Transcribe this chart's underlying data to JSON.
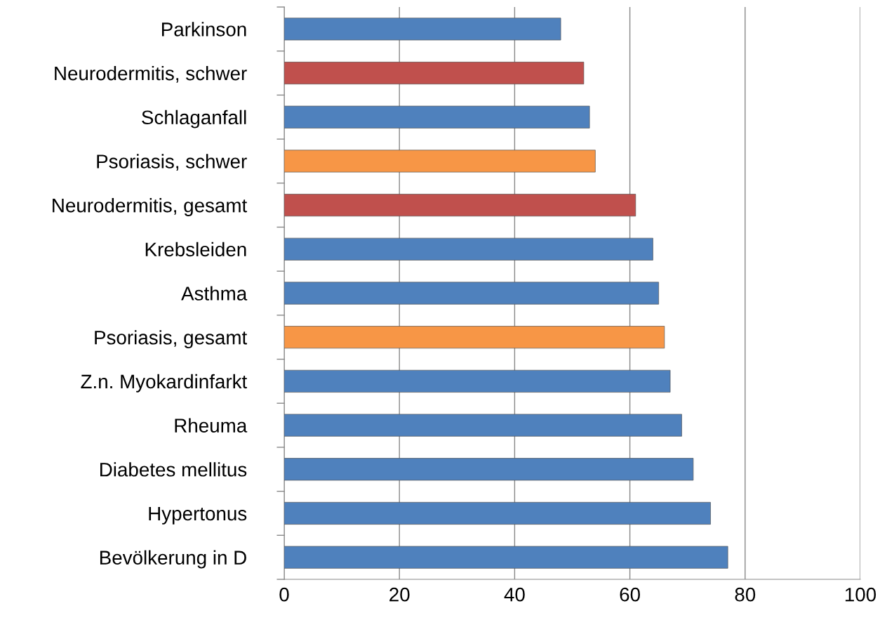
{
  "chart_data": {
    "type": "bar",
    "orientation": "horizontal",
    "categories": [
      "Parkinson",
      "Neurodermitis, schwer",
      "Schlaganfall",
      "Psoriasis, schwer",
      "Neurodermitis, gesamt",
      "Krebsleiden",
      "Asthma",
      "Psoriasis, gesamt",
      "Z.n. Myokardinfarkt",
      "Rheuma",
      "Diabetes mellitus",
      "Hypertonus",
      "Bevölkerung in D"
    ],
    "values": [
      48,
      52,
      53,
      54,
      61,
      64,
      65,
      66,
      67,
      69,
      71,
      74,
      77
    ],
    "colors": [
      "#4f81bd",
      "#c0504d",
      "#4f81bd",
      "#f79646",
      "#c0504d",
      "#4f81bd",
      "#4f81bd",
      "#f79646",
      "#4f81bd",
      "#4f81bd",
      "#4f81bd",
      "#4f81bd",
      "#4f81bd"
    ],
    "xlim": [
      0,
      100
    ],
    "xticks": [
      0,
      20,
      40,
      60,
      80,
      100
    ],
    "grid": "x"
  }
}
